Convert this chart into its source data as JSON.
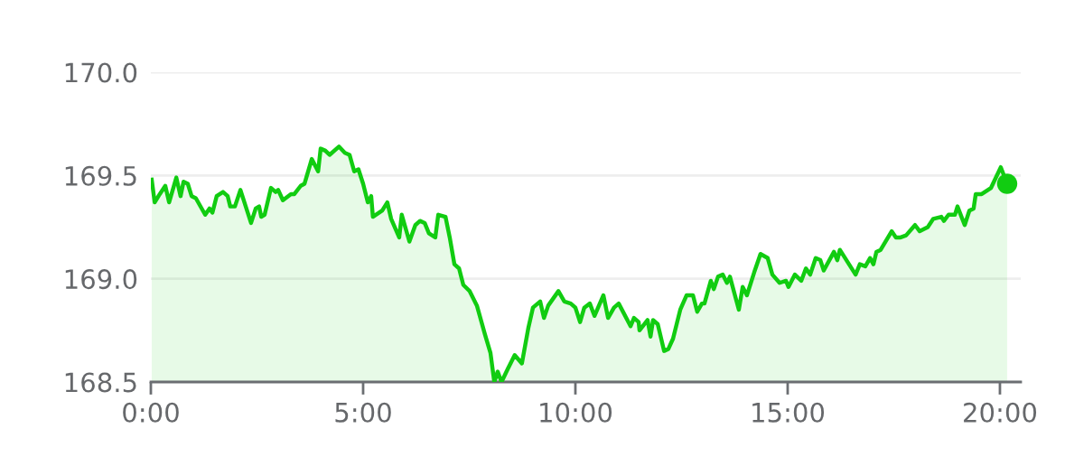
{
  "chart_data": {
    "type": "area",
    "x": [
      0.02,
      0.09,
      0.21,
      0.34,
      0.43,
      0.6,
      0.7,
      0.77,
      0.87,
      0.96,
      1.06,
      1.28,
      1.38,
      1.45,
      1.55,
      1.7,
      1.81,
      1.87,
      1.98,
      2.11,
      2.36,
      2.47,
      2.55,
      2.6,
      2.68,
      2.83,
      2.94,
      3.0,
      3.11,
      3.3,
      3.38,
      3.53,
      3.62,
      3.79,
      3.94,
      4.0,
      4.11,
      4.21,
      4.43,
      4.57,
      4.68,
      4.79,
      4.89,
      5.0,
      5.11,
      5.19,
      5.23,
      5.45,
      5.57,
      5.66,
      5.85,
      5.91,
      6.09,
      6.23,
      6.34,
      6.45,
      6.55,
      6.7,
      6.77,
      6.94,
      7.04,
      7.15,
      7.26,
      7.36,
      7.51,
      7.68,
      7.87,
      8.0,
      8.09,
      8.17,
      8.26,
      8.4,
      8.57,
      8.74,
      8.89,
      9.0,
      9.17,
      9.26,
      9.36,
      9.6,
      9.74,
      9.89,
      10.0,
      10.11,
      10.21,
      10.34,
      10.45,
      10.66,
      10.77,
      10.91,
      11.02,
      11.3,
      11.38,
      11.49,
      11.51,
      11.7,
      11.77,
      11.83,
      11.94,
      12.09,
      12.19,
      12.3,
      12.47,
      12.62,
      12.77,
      12.87,
      12.98,
      13.04,
      13.19,
      13.26,
      13.36,
      13.47,
      13.57,
      13.64,
      13.85,
      13.94,
      14.04,
      14.21,
      14.36,
      14.53,
      14.64,
      14.81,
      14.96,
      15.02,
      15.17,
      15.32,
      15.43,
      15.53,
      15.66,
      15.77,
      15.85,
      16.09,
      16.17,
      16.23,
      16.6,
      16.7,
      16.83,
      16.94,
      17.02,
      17.09,
      17.19,
      17.45,
      17.55,
      17.66,
      17.79,
      18.0,
      18.11,
      18.3,
      18.43,
      18.62,
      18.68,
      18.79,
      18.94,
      19.0,
      19.17,
      19.28,
      19.38,
      19.43,
      19.57,
      19.79,
      20.02,
      20.17
    ],
    "series": [
      {
        "color": "#11cc11",
        "values": [
          169.48,
          169.37,
          169.41,
          169.45,
          169.37,
          169.49,
          169.4,
          169.47,
          169.46,
          169.4,
          169.39,
          169.31,
          169.34,
          169.32,
          169.4,
          169.42,
          169.4,
          169.35,
          169.35,
          169.43,
          169.27,
          169.34,
          169.35,
          169.3,
          169.31,
          169.44,
          169.42,
          169.43,
          169.38,
          169.41,
          169.41,
          169.45,
          169.46,
          169.58,
          169.52,
          169.63,
          169.62,
          169.6,
          169.64,
          169.61,
          169.6,
          169.52,
          169.53,
          169.46,
          169.37,
          169.4,
          169.3,
          169.33,
          169.37,
          169.29,
          169.2,
          169.31,
          169.18,
          169.26,
          169.28,
          169.27,
          169.22,
          169.2,
          169.31,
          169.3,
          169.2,
          169.07,
          169.05,
          168.97,
          168.94,
          168.87,
          168.73,
          168.64,
          168.5,
          168.55,
          168.5,
          168.56,
          168.63,
          168.59,
          168.76,
          168.86,
          168.89,
          168.81,
          168.87,
          168.94,
          168.89,
          168.88,
          168.86,
          168.79,
          168.86,
          168.88,
          168.82,
          168.92,
          168.81,
          168.86,
          168.88,
          168.77,
          168.81,
          168.79,
          168.75,
          168.8,
          168.72,
          168.8,
          168.78,
          168.65,
          168.66,
          168.71,
          168.85,
          168.92,
          168.92,
          168.84,
          168.88,
          168.88,
          168.99,
          168.95,
          169.01,
          169.02,
          168.98,
          169.01,
          168.85,
          168.96,
          168.92,
          169.03,
          169.12,
          169.1,
          169.02,
          168.98,
          168.99,
          168.96,
          169.02,
          168.99,
          169.05,
          169.02,
          169.1,
          169.09,
          169.04,
          169.13,
          169.09,
          169.14,
          169.02,
          169.07,
          169.06,
          169.1,
          169.07,
          169.13,
          169.14,
          169.23,
          169.2,
          169.2,
          169.21,
          169.26,
          169.23,
          169.25,
          169.29,
          169.3,
          169.28,
          169.31,
          169.31,
          169.35,
          169.26,
          169.33,
          169.34,
          169.41,
          169.41,
          169.44,
          169.54,
          169.46
        ]
      },
      {
        "type": "scatter",
        "marker": "circle",
        "color": "#11cc11",
        "x": [
          20.17
        ],
        "values": [
          169.46
        ]
      }
    ],
    "xlim": [
      0,
      20.49
    ],
    "xticks": [
      {
        "value": 0,
        "label": "0:00"
      },
      {
        "value": 5,
        "label": "5:00"
      },
      {
        "value": 10,
        "label": "10:00"
      },
      {
        "value": 15,
        "label": "15:00"
      },
      {
        "value": 20,
        "label": "20:00"
      }
    ],
    "ylim": [
      168.5,
      170.0
    ],
    "yticks": [
      {
        "value": 168.5,
        "label": "168.5"
      },
      {
        "value": 169,
        "label": "169.0"
      },
      {
        "value": 169.5,
        "label": "169.5"
      },
      {
        "value": 170,
        "label": "170.0"
      }
    ],
    "grid": "y",
    "marker": "none",
    "line_style": "solid"
  }
}
